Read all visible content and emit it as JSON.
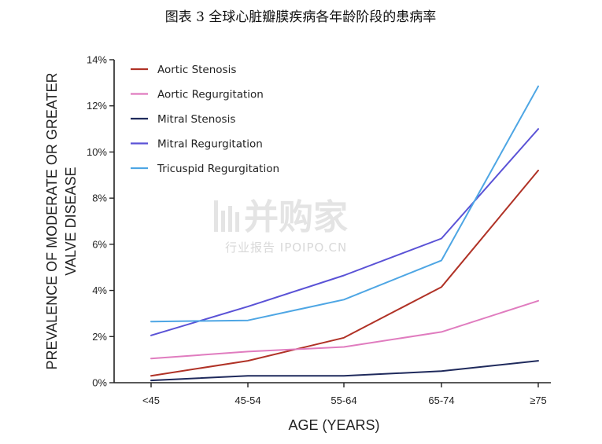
{
  "caption": "图表 3 全球心脏瓣膜疾病各年龄阶段的患病率",
  "watermark": {
    "main": "并购家",
    "sub": "行业报告 IPOIPO.CN"
  },
  "chart_data": {
    "type": "line",
    "title": "",
    "xlabel": "AGE (YEARS)",
    "ylabel_lines": [
      "PREVALENCE OF MODERATE OR GREATER",
      "VALVE DISEASE"
    ],
    "categories": [
      "<45",
      "45-54",
      "55-64",
      "65-74",
      "≥75"
    ],
    "ylim": [
      0,
      14
    ],
    "y_ticks": [
      0,
      2,
      4,
      6,
      8,
      10,
      12,
      14
    ],
    "y_tick_labels": [
      "0%",
      "2%",
      "4%",
      "6%",
      "8%",
      "10%",
      "12%",
      "14%"
    ],
    "grid": false,
    "legend_position": "top-left",
    "series": [
      {
        "name": "Aortic Stenosis",
        "color": "#b03226",
        "values": [
          0.3,
          0.95,
          1.95,
          4.15,
          9.2
        ]
      },
      {
        "name": "Aortic Regurgitation",
        "color": "#e07cbf",
        "values": [
          1.05,
          1.35,
          1.55,
          2.2,
          3.55
        ]
      },
      {
        "name": "Mitral Stenosis",
        "color": "#1f2a5c",
        "values": [
          0.1,
          0.3,
          0.3,
          0.5,
          0.95
        ]
      },
      {
        "name": "Mitral Regurgitation",
        "color": "#5a52d6",
        "values": [
          2.05,
          3.3,
          4.65,
          6.25,
          11.0
        ]
      },
      {
        "name": "Tricuspid Regurgitation",
        "color": "#4ea6e4",
        "values": [
          2.65,
          2.7,
          3.6,
          5.3,
          12.85
        ]
      }
    ]
  }
}
